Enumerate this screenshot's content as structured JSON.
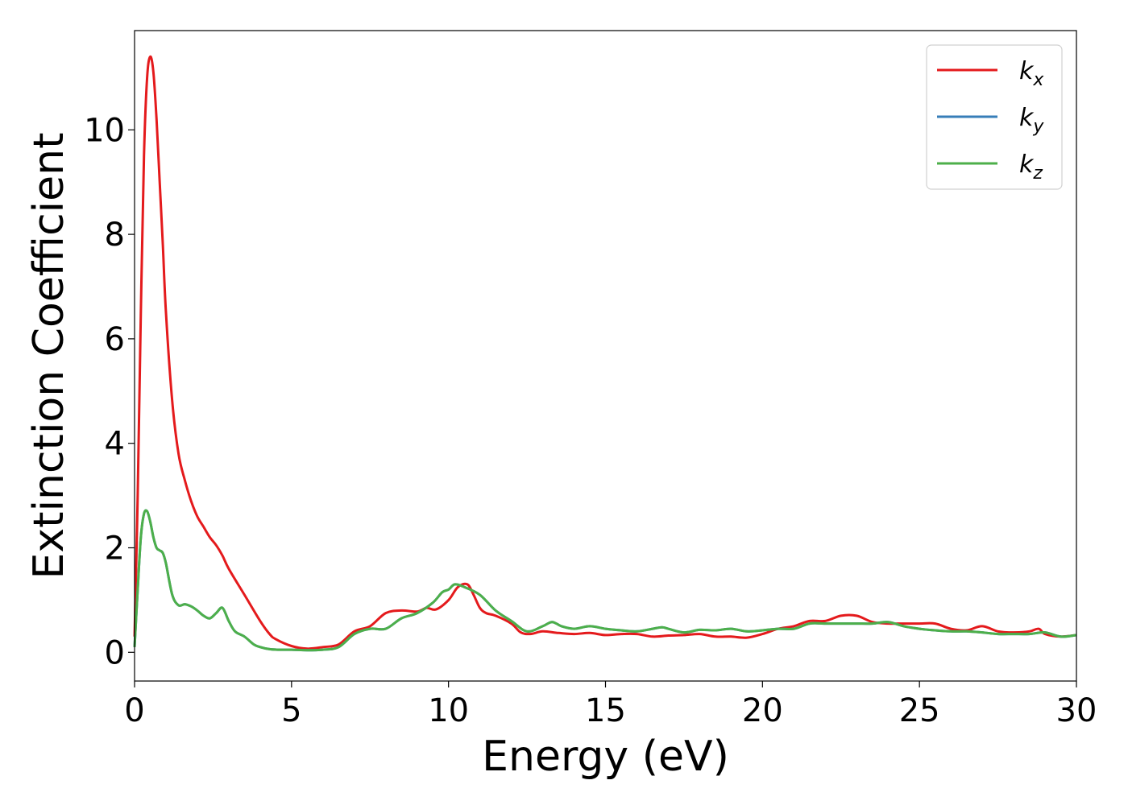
{
  "chart_data": {
    "type": "line",
    "title": "",
    "xlabel": "Energy (eV)",
    "ylabel": "Extinction Coefficient",
    "xlim": [
      0,
      30
    ],
    "ylim": [
      -0.55,
      11.9
    ],
    "xticks": [
      0,
      5,
      10,
      15,
      20,
      25,
      30
    ],
    "yticks": [
      0,
      2,
      4,
      6,
      8,
      10
    ],
    "grid": false,
    "legend_position": "top-right",
    "series": [
      {
        "name": "k_x",
        "legend_base": "k",
        "legend_sub": "x",
        "color": "#e41a1c",
        "x": [
          0.0,
          0.1,
          0.2,
          0.3,
          0.4,
          0.5,
          0.6,
          0.7,
          0.8,
          0.9,
          1.0,
          1.2,
          1.4,
          1.6,
          1.8,
          2.0,
          2.2,
          2.4,
          2.6,
          2.8,
          3.0,
          3.5,
          4.0,
          4.3,
          4.5,
          5.0,
          5.5,
          6.0,
          6.5,
          7.0,
          7.5,
          8.0,
          8.5,
          9.0,
          9.3,
          9.6,
          10.0,
          10.3,
          10.6,
          10.8,
          11.0,
          11.2,
          11.5,
          12.0,
          12.3,
          12.6,
          13.0,
          13.5,
          14.0,
          14.5,
          15.0,
          15.5,
          16.0,
          16.5,
          17.0,
          17.5,
          18.0,
          18.5,
          19.0,
          19.5,
          20.0,
          20.5,
          21.0,
          21.5,
          22.0,
          22.5,
          23.0,
          23.5,
          24.0,
          24.5,
          25.0,
          25.5,
          26.0,
          26.5,
          27.0,
          27.5,
          28.0,
          28.5,
          28.8,
          29.0,
          29.5,
          30.0
        ],
        "y": [
          0.3,
          3.0,
          6.5,
          9.5,
          11.0,
          11.4,
          11.1,
          10.2,
          9.0,
          7.8,
          6.5,
          4.8,
          3.8,
          3.3,
          2.9,
          2.6,
          2.4,
          2.2,
          2.05,
          1.85,
          1.6,
          1.1,
          0.6,
          0.35,
          0.25,
          0.12,
          0.07,
          0.1,
          0.15,
          0.4,
          0.5,
          0.75,
          0.8,
          0.78,
          0.85,
          0.82,
          1.0,
          1.25,
          1.3,
          1.1,
          0.85,
          0.75,
          0.7,
          0.55,
          0.38,
          0.35,
          0.4,
          0.37,
          0.35,
          0.37,
          0.33,
          0.35,
          0.35,
          0.3,
          0.32,
          0.33,
          0.35,
          0.3,
          0.3,
          0.28,
          0.35,
          0.45,
          0.5,
          0.6,
          0.6,
          0.7,
          0.7,
          0.58,
          0.55,
          0.55,
          0.55,
          0.55,
          0.45,
          0.42,
          0.5,
          0.4,
          0.38,
          0.4,
          0.45,
          0.35,
          0.3,
          0.33
        ]
      },
      {
        "name": "k_y",
        "legend_base": "k",
        "legend_sub": "y",
        "color": "#377eb8",
        "x": [
          0.0,
          0.1,
          0.2,
          0.3,
          0.4,
          0.5,
          0.6,
          0.7,
          0.8,
          0.9,
          1.0,
          1.2,
          1.4,
          1.6,
          1.8,
          2.0,
          2.2,
          2.4,
          2.6,
          2.8,
          3.0,
          3.2,
          3.5,
          3.8,
          4.0,
          4.3,
          4.6,
          5.0,
          5.5,
          6.0,
          6.5,
          7.0,
          7.5,
          8.0,
          8.5,
          9.0,
          9.5,
          9.8,
          10.0,
          10.2,
          10.5,
          11.0,
          11.5,
          12.0,
          12.5,
          13.0,
          13.3,
          13.6,
          14.0,
          14.5,
          15.0,
          15.5,
          16.0,
          16.5,
          16.8,
          17.0,
          17.5,
          18.0,
          18.5,
          19.0,
          19.5,
          20.0,
          20.5,
          21.0,
          21.5,
          22.0,
          22.5,
          23.0,
          23.5,
          24.0,
          24.5,
          25.0,
          25.5,
          26.0,
          26.5,
          27.0,
          27.5,
          28.0,
          28.5,
          29.0,
          29.5,
          30.0
        ],
        "y": [
          0.1,
          1.2,
          2.2,
          2.65,
          2.7,
          2.5,
          2.2,
          2.0,
          1.95,
          1.9,
          1.7,
          1.1,
          0.9,
          0.92,
          0.88,
          0.8,
          0.7,
          0.65,
          0.75,
          0.85,
          0.6,
          0.4,
          0.3,
          0.15,
          0.1,
          0.06,
          0.05,
          0.05,
          0.04,
          0.05,
          0.1,
          0.35,
          0.45,
          0.45,
          0.65,
          0.75,
          0.95,
          1.15,
          1.2,
          1.3,
          1.25,
          1.1,
          0.8,
          0.6,
          0.4,
          0.5,
          0.58,
          0.5,
          0.45,
          0.5,
          0.45,
          0.42,
          0.4,
          0.45,
          0.48,
          0.45,
          0.38,
          0.43,
          0.42,
          0.45,
          0.4,
          0.42,
          0.45,
          0.45,
          0.55,
          0.55,
          0.55,
          0.55,
          0.55,
          0.58,
          0.5,
          0.45,
          0.42,
          0.4,
          0.4,
          0.38,
          0.35,
          0.35,
          0.35,
          0.38,
          0.3,
          0.33
        ]
      },
      {
        "name": "k_z",
        "legend_base": "k",
        "legend_sub": "z",
        "color": "#4daf4a",
        "x": [
          0.0,
          0.1,
          0.2,
          0.3,
          0.4,
          0.5,
          0.6,
          0.7,
          0.8,
          0.9,
          1.0,
          1.2,
          1.4,
          1.6,
          1.8,
          2.0,
          2.2,
          2.4,
          2.6,
          2.8,
          3.0,
          3.2,
          3.5,
          3.8,
          4.0,
          4.3,
          4.6,
          5.0,
          5.5,
          6.0,
          6.5,
          7.0,
          7.5,
          8.0,
          8.5,
          9.0,
          9.5,
          9.8,
          10.0,
          10.2,
          10.5,
          11.0,
          11.5,
          12.0,
          12.5,
          13.0,
          13.3,
          13.6,
          14.0,
          14.5,
          15.0,
          15.5,
          16.0,
          16.5,
          16.8,
          17.0,
          17.5,
          18.0,
          18.5,
          19.0,
          19.5,
          20.0,
          20.5,
          21.0,
          21.5,
          22.0,
          22.5,
          23.0,
          23.5,
          24.0,
          24.5,
          25.0,
          25.5,
          26.0,
          26.5,
          27.0,
          27.5,
          28.0,
          28.5,
          29.0,
          29.5,
          30.0
        ],
        "y": [
          0.1,
          1.2,
          2.2,
          2.65,
          2.7,
          2.5,
          2.2,
          2.0,
          1.95,
          1.9,
          1.7,
          1.1,
          0.9,
          0.92,
          0.88,
          0.8,
          0.7,
          0.65,
          0.75,
          0.85,
          0.6,
          0.4,
          0.3,
          0.15,
          0.1,
          0.06,
          0.05,
          0.05,
          0.04,
          0.05,
          0.1,
          0.35,
          0.45,
          0.45,
          0.65,
          0.75,
          0.95,
          1.15,
          1.2,
          1.3,
          1.25,
          1.1,
          0.8,
          0.6,
          0.4,
          0.5,
          0.58,
          0.5,
          0.45,
          0.5,
          0.45,
          0.42,
          0.4,
          0.45,
          0.48,
          0.45,
          0.38,
          0.43,
          0.42,
          0.45,
          0.4,
          0.42,
          0.45,
          0.45,
          0.55,
          0.55,
          0.55,
          0.55,
          0.55,
          0.58,
          0.5,
          0.45,
          0.42,
          0.4,
          0.4,
          0.38,
          0.35,
          0.35,
          0.35,
          0.38,
          0.3,
          0.33
        ]
      }
    ]
  }
}
